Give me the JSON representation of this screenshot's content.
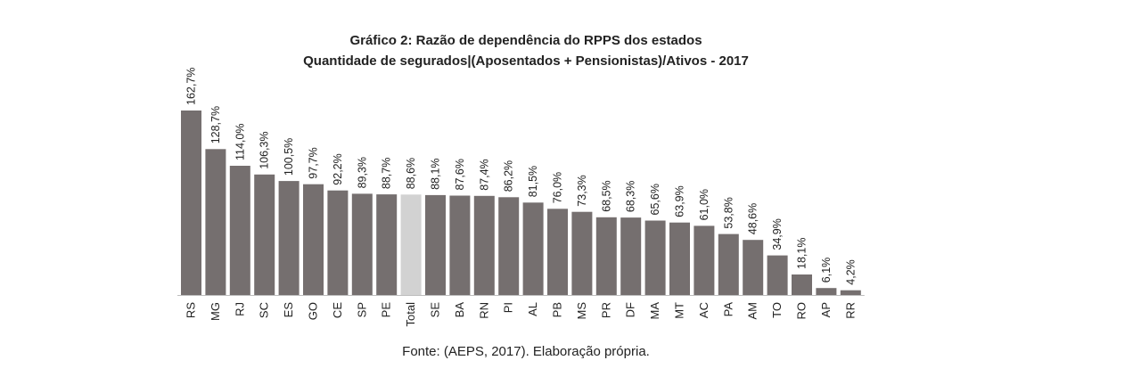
{
  "chart_data": {
    "type": "bar",
    "title": "Gráfico 2: Razão de dependência do RPPS dos estados",
    "subtitle": "Quantidade de segurados|(Aposentados + Pensionistas)/Ativos - 2017",
    "categories": [
      "RS",
      "MG",
      "RJ",
      "SC",
      "ES",
      "GO",
      "CE",
      "SP",
      "PE",
      "Total",
      "SE",
      "BA",
      "RN",
      "PI",
      "AL",
      "PB",
      "MS",
      "PR",
      "DF",
      "MA",
      "MT",
      "AC",
      "PA",
      "AM",
      "TO",
      "RO",
      "AP",
      "RR"
    ],
    "values": [
      162.7,
      128.7,
      114.0,
      106.3,
      100.5,
      97.7,
      92.2,
      89.3,
      88.7,
      88.6,
      88.1,
      87.6,
      87.4,
      86.2,
      81.5,
      76.0,
      73.3,
      68.5,
      68.3,
      65.6,
      63.9,
      61.0,
      53.8,
      48.6,
      34.9,
      18.1,
      6.1,
      4.2
    ],
    "data_labels": [
      "162,7%",
      "128,7%",
      "114,0%",
      "106,3%",
      "100,5%",
      "97,7%",
      "92,2%",
      "89,3%",
      "88,7%",
      "88,6%",
      "88,1%",
      "87,6%",
      "87,4%",
      "86,2%",
      "81,5%",
      "76,0%",
      "73,3%",
      "68,5%",
      "68,3%",
      "65,6%",
      "63,9%",
      "61,0%",
      "53,8%",
      "48,6%",
      "34,9%",
      "18,1%",
      "6,1%",
      "4,2%"
    ],
    "highlight_category": "Total",
    "ylim": [
      0,
      165
    ],
    "grid": false,
    "colors": {
      "bar": "#756f6f",
      "highlight": "#d2d2d2",
      "axis": "#bdbdbd"
    }
  },
  "source": "Fonte: (AEPS, 2017). Elaboração própria."
}
